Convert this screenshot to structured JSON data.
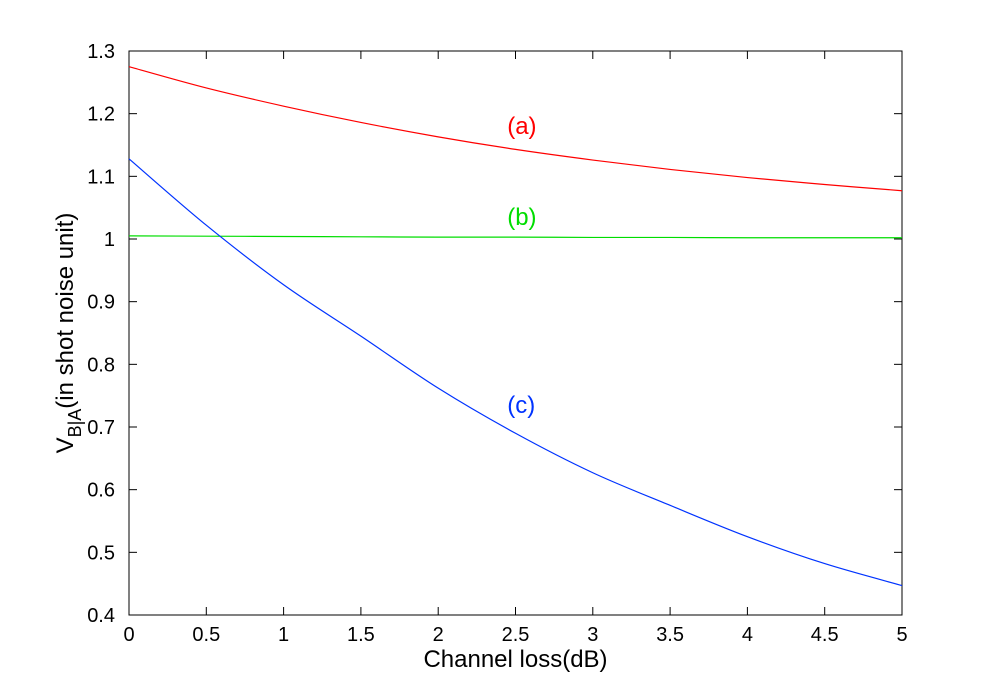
{
  "chart_data": {
    "type": "line",
    "title": "",
    "xlabel": "Channel loss(dB)",
    "ylabel": {
      "main": "V",
      "subscript": "B|A",
      "rest": "(in shot noise unit)"
    },
    "xlim": [
      0,
      5
    ],
    "ylim": [
      0.4,
      1.3
    ],
    "xticks": [
      0,
      0.5,
      1,
      1.5,
      2,
      2.5,
      3,
      3.5,
      4,
      4.5,
      5
    ],
    "xtick_labels": [
      "0",
      "0.5",
      "1",
      "1.5",
      "2",
      "2.5",
      "3",
      "3.5",
      "4",
      "4.5",
      "5"
    ],
    "yticks": [
      0.4,
      0.5,
      0.6,
      0.7,
      0.8,
      0.9,
      1.0,
      1.1,
      1.2,
      1.3
    ],
    "ytick_labels": [
      "0.4",
      "0.5",
      "0.6",
      "0.7",
      "0.8",
      "0.9",
      "1",
      "1.1",
      "1.2",
      "1.3"
    ],
    "grid": false,
    "legend": "none",
    "x": [
      0,
      0.5,
      1,
      1.5,
      2,
      2.5,
      3,
      3.5,
      4,
      4.5,
      5
    ],
    "series": [
      {
        "label": "(a)",
        "color": "#ff0000",
        "values": [
          1.275,
          1.241,
          1.212,
          1.186,
          1.163,
          1.143,
          1.126,
          1.111,
          1.098,
          1.087,
          1.077
        ],
        "label_at": [
          2.55,
          1.18
        ]
      },
      {
        "label": "(b)",
        "color": "#00dd00",
        "values": [
          1.005,
          1.0045,
          1.004,
          1.0035,
          1.003,
          1.003,
          1.0025,
          1.0025,
          1.002,
          1.002,
          1.002
        ],
        "label_at": [
          2.55,
          1.035
        ]
      },
      {
        "label": "(c)",
        "color": "#0033ff",
        "values": [
          1.128,
          1.022,
          0.927,
          0.845,
          0.762,
          0.69,
          0.627,
          0.575,
          0.525,
          0.482,
          0.447
        ],
        "label_at": [
          2.55,
          0.735
        ]
      }
    ]
  }
}
